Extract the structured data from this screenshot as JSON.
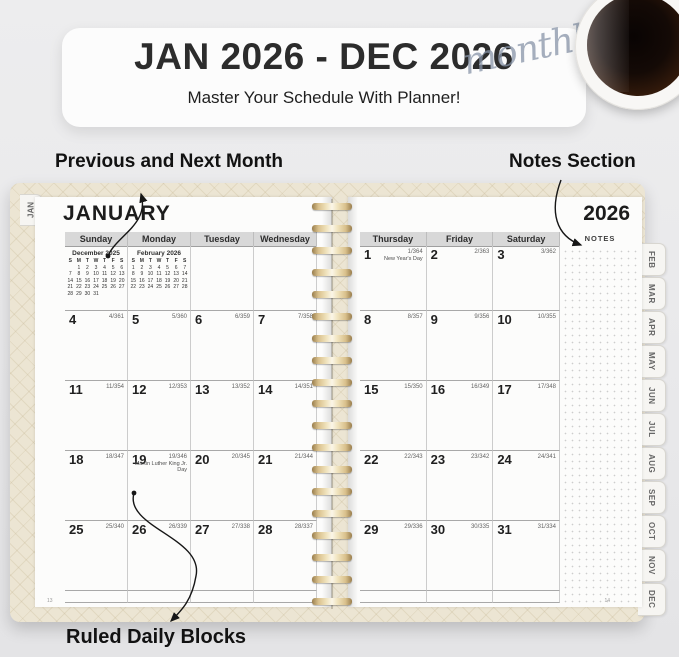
{
  "banner": {
    "title": "JAN 2026 - DEC 2026",
    "subtitle": "Master Your Schedule With Planner!",
    "script": "monthly"
  },
  "annotations": {
    "prev_next": "Previous and Next Month",
    "notes": "Notes Section",
    "ruled": "Ruled Daily Blocks"
  },
  "planner": {
    "left_tab": "JAN",
    "month_title": "JANUARY",
    "year": "2026",
    "notes_label": "NOTES",
    "page_number_left": "13",
    "page_number_right": "14",
    "tabs": [
      "FEB",
      "MAR",
      "APR",
      "MAY",
      "JUN",
      "JUL",
      "AUG",
      "SEP",
      "OCT",
      "NOV",
      "DEC"
    ],
    "left_headers": [
      "Sunday",
      "Monday",
      "Tuesday",
      "Wednesday"
    ],
    "right_headers": [
      "Thursday",
      "Friday",
      "Saturday"
    ],
    "mini_calendars": [
      {
        "title": "December 2025",
        "dow": [
          "S",
          "M",
          "T",
          "W",
          "T",
          "F",
          "S"
        ],
        "days": [
          "",
          "1",
          "2",
          "3",
          "4",
          "5",
          "6",
          "7",
          "8",
          "9",
          "10",
          "11",
          "12",
          "13",
          "14",
          "15",
          "16",
          "17",
          "18",
          "19",
          "20",
          "21",
          "22",
          "23",
          "24",
          "25",
          "26",
          "27",
          "28",
          "29",
          "30",
          "31"
        ]
      },
      {
        "title": "February 2026",
        "dow": [
          "S",
          "M",
          "T",
          "W",
          "T",
          "F",
          "S"
        ],
        "days": [
          "1",
          "2",
          "3",
          "4",
          "5",
          "6",
          "7",
          "8",
          "9",
          "10",
          "11",
          "12",
          "13",
          "14",
          "15",
          "16",
          "17",
          "18",
          "19",
          "20",
          "21",
          "22",
          "23",
          "24",
          "25",
          "26",
          "27",
          "28"
        ]
      }
    ],
    "left_weeks": [
      [
        {
          "d": "4",
          "doy": "4/361"
        },
        {
          "d": "5",
          "doy": "5/360"
        },
        {
          "d": "6",
          "doy": "6/359"
        },
        {
          "d": "7",
          "doy": "7/358"
        }
      ],
      [
        {
          "d": "11",
          "doy": "11/354"
        },
        {
          "d": "12",
          "doy": "12/353"
        },
        {
          "d": "13",
          "doy": "13/352"
        },
        {
          "d": "14",
          "doy": "14/351"
        }
      ],
      [
        {
          "d": "18",
          "doy": "18/347"
        },
        {
          "d": "19",
          "doy": "19/346",
          "note": "Martin Luther King Jr. Day"
        },
        {
          "d": "20",
          "doy": "20/345"
        },
        {
          "d": "21",
          "doy": "21/344"
        }
      ],
      [
        {
          "d": "25",
          "doy": "25/340"
        },
        {
          "d": "26",
          "doy": "26/339"
        },
        {
          "d": "27",
          "doy": "27/338"
        },
        {
          "d": "28",
          "doy": "28/337"
        }
      ]
    ],
    "right_weeks": [
      [
        {
          "d": "1",
          "doy": "1/364",
          "note": "New Year's Day"
        },
        {
          "d": "2",
          "doy": "2/363"
        },
        {
          "d": "3",
          "doy": "3/362"
        }
      ],
      [
        {
          "d": "8",
          "doy": "8/357"
        },
        {
          "d": "9",
          "doy": "9/356"
        },
        {
          "d": "10",
          "doy": "10/355"
        }
      ],
      [
        {
          "d": "15",
          "doy": "15/350"
        },
        {
          "d": "16",
          "doy": "16/349"
        },
        {
          "d": "17",
          "doy": "17/348"
        }
      ],
      [
        {
          "d": "22",
          "doy": "22/343"
        },
        {
          "d": "23",
          "doy": "23/342"
        },
        {
          "d": "24",
          "doy": "24/341"
        }
      ],
      [
        {
          "d": "29",
          "doy": "29/336"
        },
        {
          "d": "30",
          "doy": "30/335"
        },
        {
          "d": "31",
          "doy": "31/334"
        }
      ]
    ],
    "colors": {
      "spiral_gold": "#c9b37e",
      "cover_cream": "#ece5d3",
      "script_blue": "#8895a8",
      "title_dark": "#2c2c2c"
    }
  }
}
